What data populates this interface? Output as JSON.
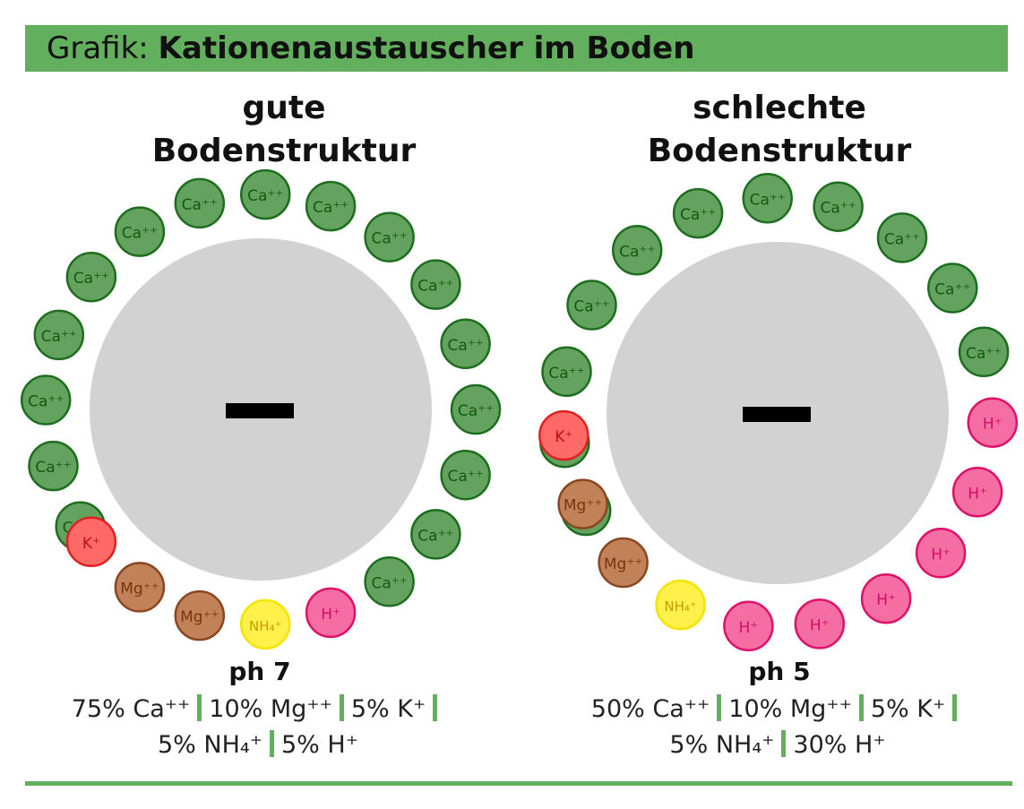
{
  "header": {
    "prefix": "Grafik:",
    "title": "Kationenaustauscher im Boden"
  },
  "colors": {
    "accent": "#62b05e",
    "core": "#d2d2d2",
    "Ca": {
      "fill": "#64a35f",
      "stroke": "#1d6e1e",
      "text": "#115a12"
    },
    "H": {
      "fill": "#f46ea3",
      "stroke": "#e0106a",
      "text": "#cf0f63"
    },
    "NH4": {
      "fill": "#fff04a",
      "stroke": "#f5e300",
      "text": "#c89a00"
    },
    "Mg": {
      "fill": "#c1825a",
      "stroke": "#8a4620",
      "text": "#7a3510"
    },
    "K": {
      "fill": "#ff6a66",
      "stroke": "#e02020",
      "text": "#c01010"
    }
  },
  "ion_labels": {
    "Ca": "Ca⁺⁺",
    "H": "H⁺",
    "NH4": "NH₄⁺",
    "Mg": "Mg⁺⁺",
    "K": "K⁺"
  },
  "core_symbol": "−",
  "panels": [
    {
      "id": "gut",
      "title_line1": "gute",
      "title_line2": "Bodenstruktur",
      "ph": "ph 7",
      "composition_line1": [
        "75% Ca⁺⁺",
        "10% Mg⁺⁺",
        "5% K⁺"
      ],
      "composition_line2": [
        "5% NH₄⁺",
        "5% H⁺"
      ],
      "ions": [
        "Ca",
        "Ca",
        "Ca",
        "Ca",
        "Ca",
        "Ca",
        "Ca",
        "Ca",
        "Ca",
        "Ca",
        "Ca",
        "Ca",
        "Ca",
        "Ca",
        "Ca",
        "Ca",
        "H",
        "NH4",
        "Mg",
        "Mg",
        "K"
      ]
    },
    {
      "id": "schlecht",
      "title_line1": "schlechte",
      "title_line2": "Bodenstruktur",
      "ph": "ph 5",
      "composition_line1": [
        "50% Ca⁺⁺",
        "10% Mg⁺⁺",
        "5% K⁺"
      ],
      "composition_line2": [
        "5% NH₄⁺",
        "30% H⁺"
      ],
      "ions": [
        "Ca",
        "Ca",
        "Ca",
        "Ca",
        "Ca",
        "Ca",
        "Ca",
        "Ca",
        "Ca",
        "Ca",
        "Ca",
        "H",
        "H",
        "H",
        "H",
        "H",
        "H",
        "NH4",
        "Mg",
        "Mg",
        "K"
      ]
    }
  ]
}
